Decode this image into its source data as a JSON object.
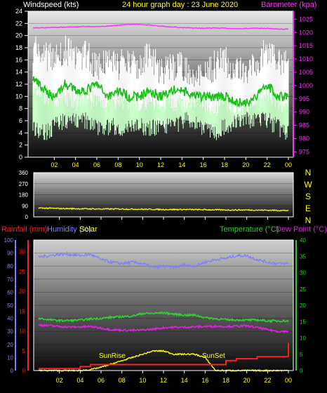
{
  "colors": {
    "background": "#000000",
    "wind_axis": "#ffffff",
    "title": "#ffff00",
    "baro": "#ff33ff",
    "gust": "#ffffff",
    "wind_avg": "#c8ffc8",
    "wind_dir": "#ffff00",
    "rain": "#ff2020",
    "humidity": "#8080ff",
    "solar": "#ffff00",
    "temperature": "#30d030",
    "dewpoint": "#e020e0",
    "sun_label": "#ffff00",
    "x_ticks": "#ffff00"
  },
  "chart_data": [
    {
      "type": "line",
      "panel": "wind_baro",
      "title": "24 hour graph day : 23 June 2020",
      "ylabel_left": "Windspeed (kts)",
      "ylabel_right": "Barometer (kpa)",
      "x_ticks": [
        "02",
        "04",
        "06",
        "08",
        "10",
        "12",
        "14",
        "16",
        "18",
        "20",
        "22",
        "00"
      ],
      "y_left_ticks": [
        "0",
        "2",
        "4",
        "6",
        "8",
        "10",
        "12",
        "14",
        "16",
        "18",
        "20",
        "22",
        "24"
      ],
      "y_right_ticks": [
        "975",
        "980",
        "985",
        "990",
        "995",
        "1000",
        "1005",
        "1010",
        "1015",
        "1020",
        "1025"
      ],
      "ylim_left": [
        0,
        24
      ],
      "ylim_right": [
        973,
        1028
      ],
      "x_hours": [
        0,
        1,
        2,
        3,
        4,
        5,
        6,
        7,
        8,
        9,
        10,
        11,
        12,
        13,
        14,
        15,
        16,
        17,
        18,
        19,
        20,
        21,
        22,
        23,
        24
      ],
      "series": [
        {
          "key": "gust",
          "values": [
            17,
            16,
            15,
            17,
            15,
            16,
            14,
            15,
            14,
            15,
            14,
            16,
            13,
            14,
            14,
            13,
            12,
            14,
            15,
            13,
            13,
            14,
            17,
            15,
            15
          ]
        },
        {
          "key": "avg_high",
          "values": [
            11,
            10,
            9,
            10,
            9,
            10,
            9,
            9,
            9,
            9,
            9,
            9,
            9,
            9,
            9,
            9,
            9,
            8,
            9,
            8,
            8,
            9,
            10,
            9,
            9
          ]
        },
        {
          "key": "avg_low",
          "values": [
            5,
            4,
            5,
            6,
            6,
            6,
            5,
            5,
            5,
            5,
            5,
            5,
            5,
            5,
            6,
            6,
            5,
            4,
            5,
            6,
            6,
            6,
            6,
            5,
            4
          ]
        },
        {
          "key": "wind_mean",
          "values": [
            13,
            11,
            10,
            12,
            11,
            11,
            12,
            10,
            11,
            10,
            10,
            11,
            10,
            11,
            11,
            10,
            10,
            10,
            10,
            9,
            9,
            10,
            12,
            10,
            10
          ]
        },
        {
          "key": "barometer",
          "values": [
            1021.7,
            1021.8,
            1021.9,
            1022.0,
            1022.1,
            1022.3,
            1022.2,
            1022.4,
            1022.7,
            1023.0,
            1023.0,
            1022.8,
            1022.4,
            1022.1,
            1021.8,
            1021.7,
            1021.6,
            1021.7,
            1021.6,
            1021.4,
            1021.5,
            1021.6,
            1021.5,
            1021.3,
            1021.2
          ]
        }
      ]
    },
    {
      "type": "line",
      "panel": "wind_direction",
      "y_left_ticks": [
        "0",
        "90",
        "180",
        "270",
        "360"
      ],
      "ylim": [
        0,
        360
      ],
      "compass_labels": [
        "N",
        "W",
        "S",
        "E",
        "N"
      ],
      "x_ticks": [
        "02",
        "04",
        "06",
        "08",
        "10",
        "12",
        "14",
        "16",
        "18",
        "20",
        "22",
        "00"
      ],
      "x_hours": [
        0,
        2,
        4,
        6,
        8,
        10,
        12,
        14,
        16,
        18,
        20,
        22,
        24
      ],
      "series": [
        {
          "key": "direction",
          "values": [
            72,
            68,
            66,
            64,
            64,
            62,
            60,
            60,
            58,
            56,
            56,
            54,
            52
          ]
        }
      ]
    },
    {
      "type": "line",
      "panel": "rain_hum_temp",
      "legend_left": [
        {
          "label": "Rainfall (mm)",
          "color_key": "rain"
        },
        {
          "label": "Humidity (%)",
          "color_key": "humidity"
        },
        {
          "label": "Solar",
          "color_key": "solar"
        }
      ],
      "legend_right": [
        {
          "label": "Temperature (°C)",
          "color_key": "temperature"
        },
        {
          "label": "Dew Point (°C)",
          "color_key": "dewpoint"
        }
      ],
      "y_humidity_ticks": [
        "0",
        "10",
        "20",
        "30",
        "40",
        "50",
        "60",
        "70",
        "80",
        "90",
        "100"
      ],
      "y_rain_ticks": [
        "0",
        "5",
        "10",
        "15",
        "20",
        "25",
        "30"
      ],
      "y_temp_ticks": [
        "0",
        "5",
        "10",
        "15",
        "20",
        "25",
        "30",
        "35",
        "40"
      ],
      "ylim_humidity": [
        0,
        100
      ],
      "ylim_temp": [
        0,
        40
      ],
      "annotations": [
        "SunRise",
        "SunSet"
      ],
      "x_ticks": [
        "02",
        "04",
        "06",
        "08",
        "10",
        "12",
        "14",
        "16",
        "18",
        "20",
        "22",
        "00"
      ],
      "x_hours": [
        0,
        1,
        2,
        3,
        4,
        5,
        6,
        7,
        8,
        9,
        10,
        11,
        12,
        13,
        14,
        15,
        16,
        17,
        18,
        19,
        20,
        21,
        22,
        23,
        24
      ],
      "series": [
        {
          "key": "humidity",
          "values": [
            87,
            88,
            89,
            89,
            88,
            89,
            85,
            83,
            82,
            83,
            82,
            79,
            80,
            79,
            81,
            80,
            83,
            85,
            86,
            88,
            88,
            85,
            83,
            82,
            82
          ]
        },
        {
          "key": "temperature",
          "values": [
            16.0,
            15.6,
            15.3,
            15.3,
            15.5,
            15.8,
            16.0,
            16.3,
            16.5,
            16.7,
            17.5,
            17.5,
            17.7,
            17.3,
            17.0,
            17.0,
            16.2,
            15.9,
            15.6,
            15.5,
            15.5,
            15.5,
            15.2,
            15.2,
            15.2
          ]
        },
        {
          "key": "dewpoint",
          "values": [
            14.0,
            13.8,
            13.5,
            13.3,
            13.4,
            13.5,
            13.0,
            12.5,
            12.4,
            12.3,
            12.4,
            12.7,
            13.1,
            13.3,
            13.3,
            13.4,
            13.5,
            13.6,
            13.5,
            13.6,
            13.7,
            13.2,
            12.5,
            12.0,
            12.0
          ]
        },
        {
          "key": "rain",
          "values": [
            0.5,
            0.5,
            0.5,
            0.5,
            1.0,
            1.5,
            1.5,
            1.5,
            1.5,
            1.5,
            1.5,
            1.5,
            1.5,
            1.5,
            1.5,
            1.5,
            1.5,
            1.5,
            2.5,
            3.0,
            3.0,
            3.5,
            3.5,
            3.5,
            3.5
          ]
        },
        {
          "key": "solar",
          "values": [
            0,
            0,
            0,
            0,
            0,
            0.3,
            1,
            2,
            3,
            4,
            5,
            6,
            6,
            5,
            5,
            5,
            4,
            0,
            0,
            0,
            0,
            0,
            0,
            0,
            0
          ]
        }
      ]
    }
  ]
}
